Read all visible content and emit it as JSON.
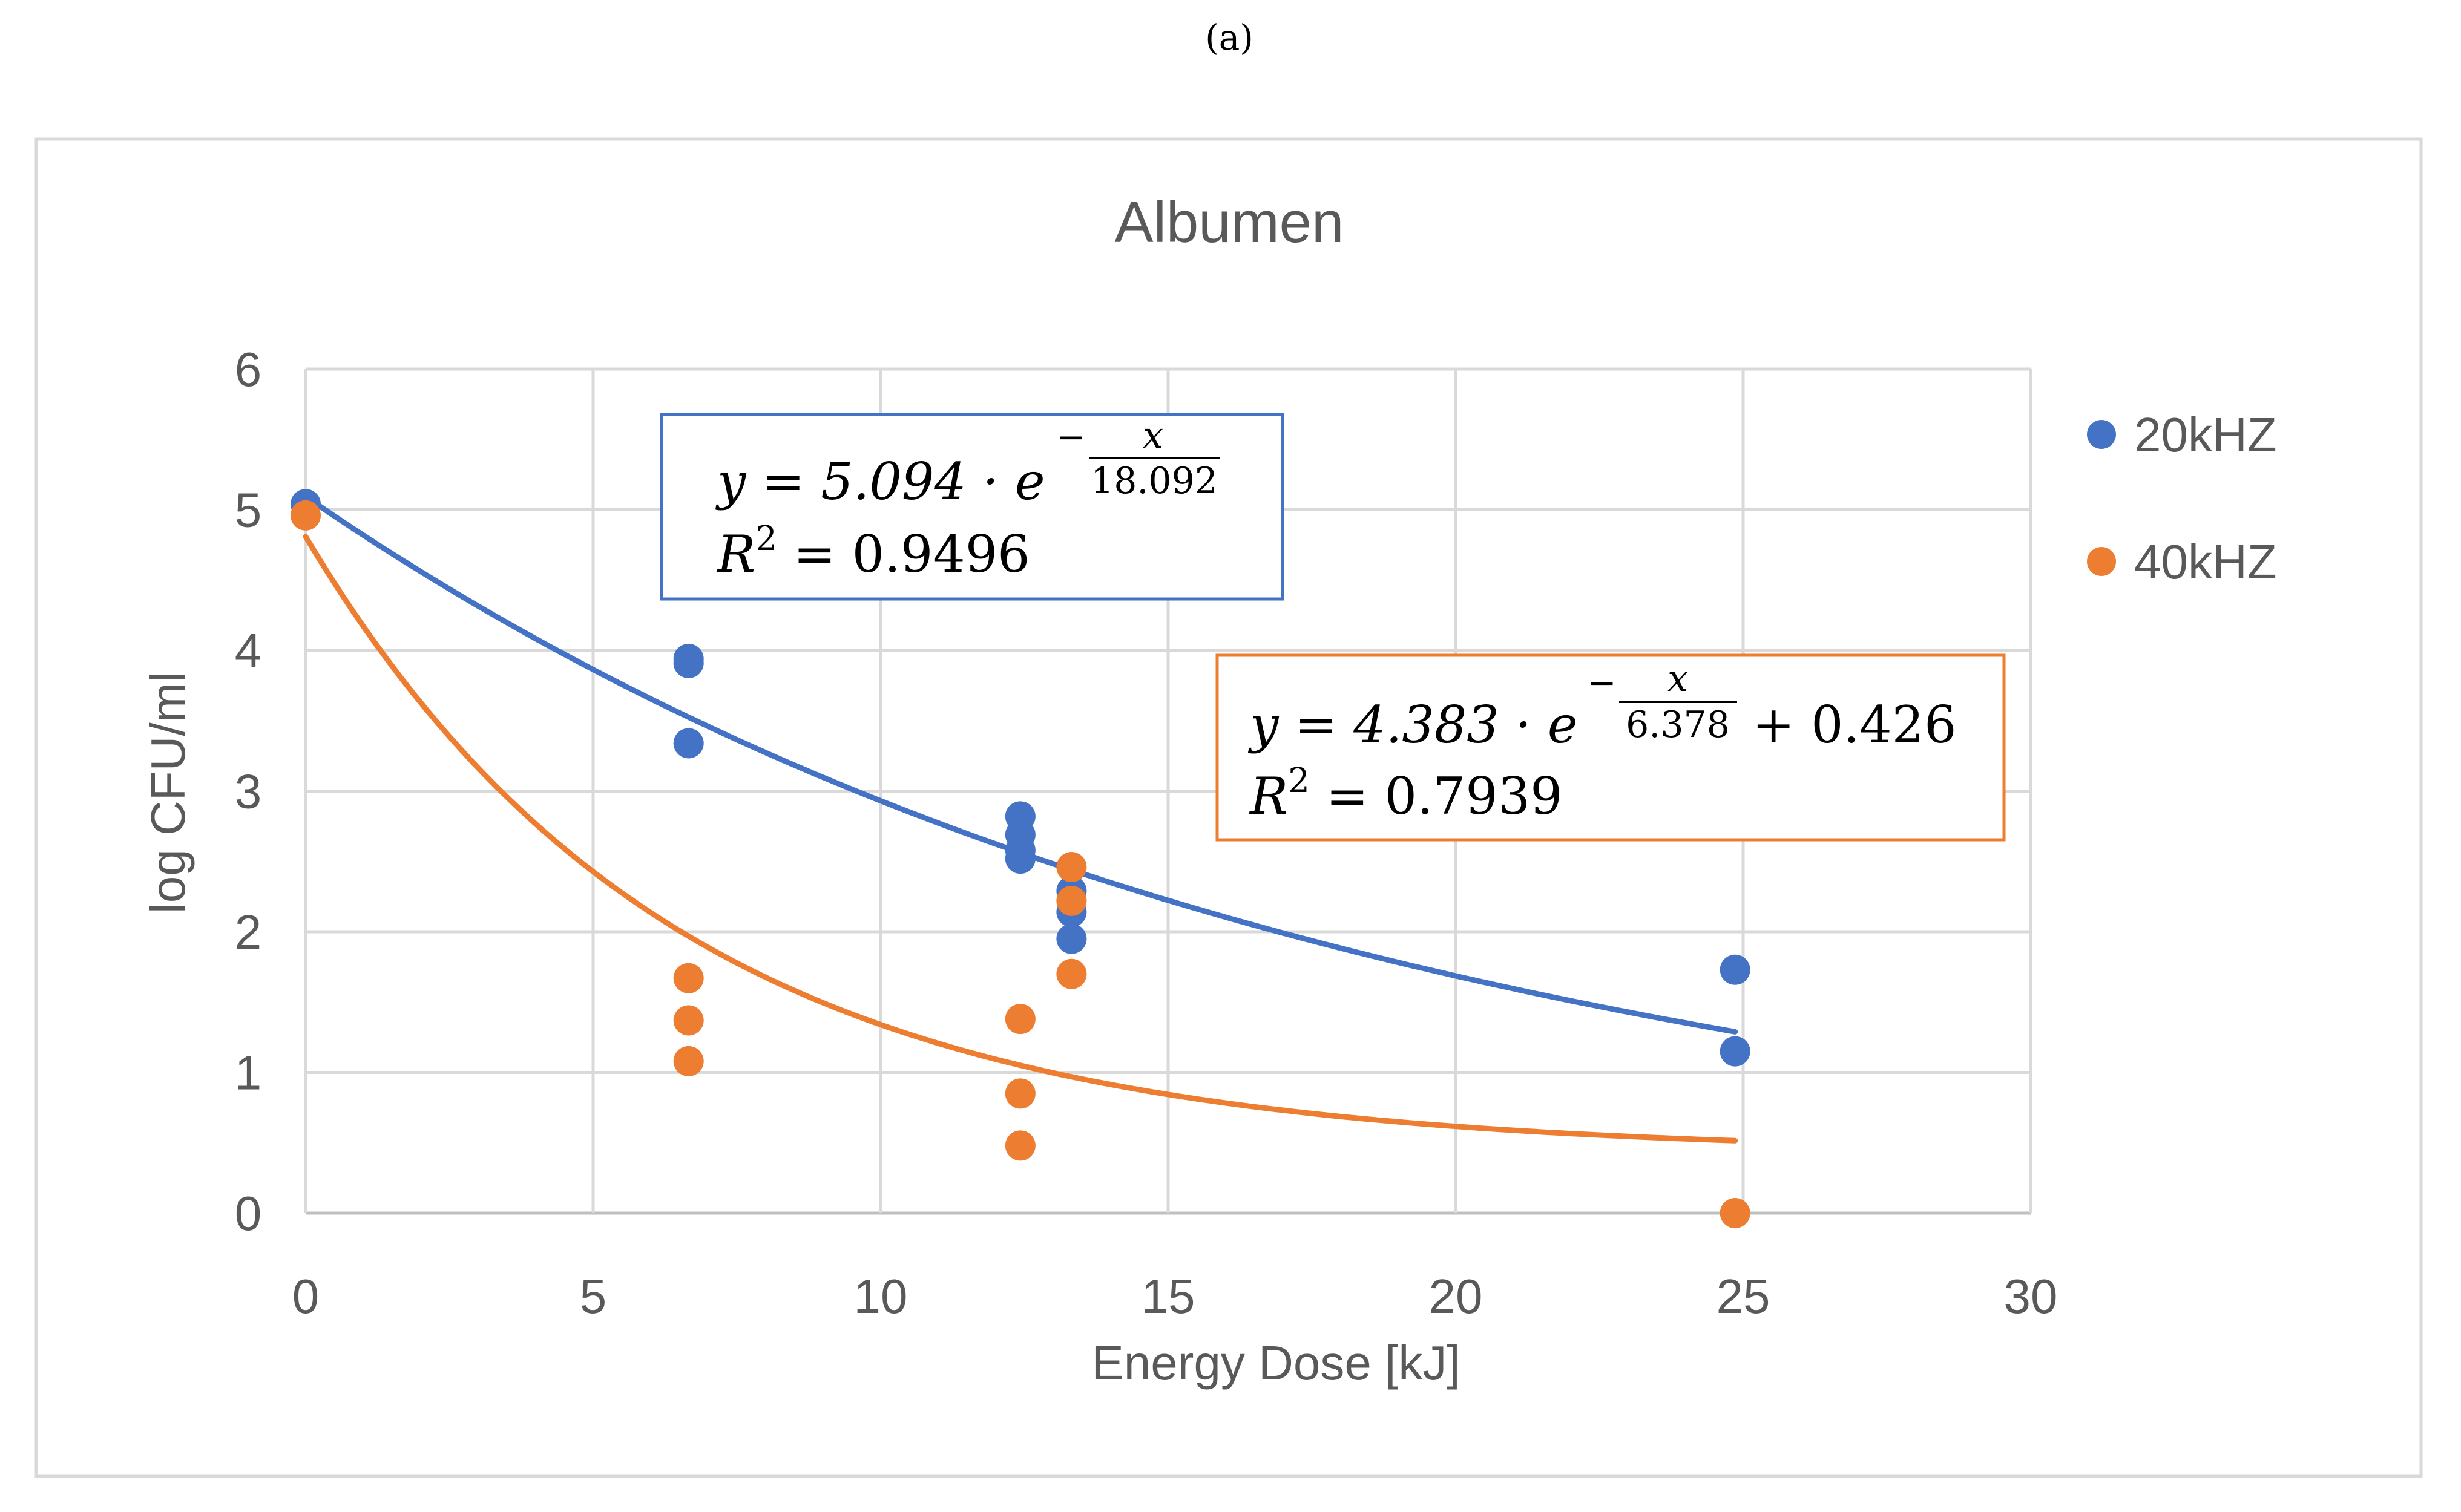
{
  "panel_label": "(a)",
  "chart_data": {
    "type": "scatter",
    "title": "Albumen",
    "xlabel": "Energy Dose [kJ]",
    "ylabel": "log CFU/ml",
    "xlim": [
      0,
      30
    ],
    "ylim": [
      0,
      6
    ],
    "xticks": [
      0,
      5,
      10,
      15,
      20,
      25,
      30
    ],
    "yticks": [
      0,
      1,
      2,
      3,
      4,
      5,
      6
    ],
    "grid": true,
    "legend_position": "right",
    "series": [
      {
        "name": "20kHZ",
        "color": "#4472C4",
        "points": [
          [
            0,
            5.04
          ],
          [
            6.66,
            3.94
          ],
          [
            6.66,
            3.91
          ],
          [
            6.66,
            3.34
          ],
          [
            12.43,
            2.82
          ],
          [
            12.43,
            2.69
          ],
          [
            12.43,
            2.58
          ],
          [
            12.43,
            2.52
          ],
          [
            13.32,
            2.29
          ],
          [
            13.32,
            2.14
          ],
          [
            13.32,
            1.95
          ],
          [
            24.86,
            1.73
          ],
          [
            24.86,
            1.15
          ]
        ],
        "fit": {
          "a": 5.094,
          "b": 18.092,
          "c": 0,
          "x_range": [
            0,
            24.86
          ]
        },
        "equation": {
          "y_eq": "y = 5.094 · e",
          "exp_num": "x",
          "exp_den": "18.092",
          "r2_label": "R",
          "r2_sup": "2",
          "r2_value": " = 0.9496"
        }
      },
      {
        "name": "40kHZ",
        "color": "#ED7D31",
        "points": [
          [
            0,
            4.96
          ],
          [
            6.66,
            1.67
          ],
          [
            6.66,
            1.37
          ],
          [
            6.66,
            1.08
          ],
          [
            12.43,
            1.38
          ],
          [
            12.43,
            0.85
          ],
          [
            12.43,
            0.48
          ],
          [
            13.32,
            2.46
          ],
          [
            13.32,
            2.22
          ],
          [
            13.32,
            1.7
          ],
          [
            24.86,
            0.0
          ]
        ],
        "fit": {
          "a": 4.383,
          "b": 6.378,
          "c": 0.426,
          "x_range": [
            0,
            24.86
          ]
        },
        "equation": {
          "y_eq": "y = 4.383 · e",
          "exp_num": "x",
          "exp_den": "6.378",
          "tail": "+ 0.426",
          "r2_label": "R",
          "r2_sup": "2",
          "r2_value": " = 0.7939"
        }
      }
    ]
  }
}
